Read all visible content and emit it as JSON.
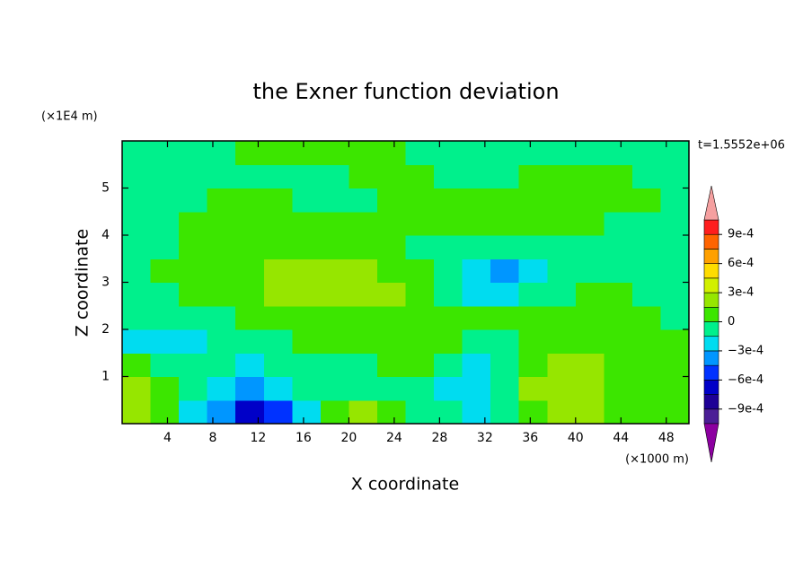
{
  "chart_data": {
    "type": "contour",
    "title": "the Exner function deviation",
    "xlabel": "X coordinate",
    "ylabel": "Z coordinate",
    "x_unit": "(×1000 m)",
    "y_unit": "(×1E4 m)",
    "annotation": "t=1.5552e+06",
    "xlim": [
      0,
      50
    ],
    "xticks": [
      4,
      8,
      12,
      16,
      20,
      24,
      28,
      32,
      36,
      40,
      44,
      48
    ],
    "ylim": [
      0,
      6
    ],
    "yticks": [
      1,
      2,
      3,
      4,
      5
    ],
    "x": [
      1.25,
      3.75,
      6.25,
      8.75,
      11.25,
      13.75,
      16.25,
      18.75,
      21.25,
      23.75,
      26.25,
      28.75,
      31.25,
      33.75,
      36.25,
      38.75,
      41.25,
      43.75,
      46.25,
      48.75
    ],
    "y": [
      0.25,
      0.75,
      1.25,
      1.75,
      2.25,
      2.75,
      3.25,
      3.75,
      4.25,
      4.75,
      5.25,
      5.75
    ],
    "z": [
      [
        0.0002,
        7e-05,
        -0.0002,
        -0.00035,
        -0.0007,
        -0.0005,
        -0.0002,
        7e-05,
        0.0002,
        7e-05,
        -5e-05,
        -5e-05,
        -0.0002,
        -5e-05,
        7e-05,
        0.0002,
        0.0002,
        7e-05,
        7e-05,
        7e-05
      ],
      [
        0.0002,
        7e-05,
        -5e-05,
        -0.0002,
        -0.00035,
        -0.0002,
        -5e-05,
        -5e-05,
        -5e-05,
        -5e-05,
        -5e-05,
        -0.0002,
        -0.0002,
        -5e-05,
        0.0002,
        0.0002,
        0.0002,
        7e-05,
        7e-05,
        7e-05
      ],
      [
        7e-05,
        -5e-05,
        -5e-05,
        -5e-05,
        -0.0002,
        -5e-05,
        -5e-05,
        -5e-05,
        -5e-05,
        7e-05,
        7e-05,
        -5e-05,
        -0.0002,
        -5e-05,
        7e-05,
        0.0002,
        0.0002,
        7e-05,
        7e-05,
        7e-05
      ],
      [
        -0.0002,
        -0.0002,
        -0.0002,
        -5e-05,
        -5e-05,
        -5e-05,
        7e-05,
        7e-05,
        7e-05,
        7e-05,
        7e-05,
        7e-05,
        -5e-05,
        -5e-05,
        7e-05,
        7e-05,
        7e-05,
        7e-05,
        7e-05,
        7e-05
      ],
      [
        -5e-05,
        -5e-05,
        -5e-05,
        -5e-05,
        7e-05,
        7e-05,
        7e-05,
        7e-05,
        7e-05,
        7e-05,
        7e-05,
        7e-05,
        7e-05,
        7e-05,
        7e-05,
        7e-05,
        7e-05,
        7e-05,
        7e-05,
        -5e-05
      ],
      [
        -5e-05,
        -5e-05,
        7e-05,
        7e-05,
        7e-05,
        0.0002,
        0.0002,
        0.0002,
        0.0002,
        0.0002,
        7e-05,
        -5e-05,
        -0.0002,
        -0.0002,
        -5e-05,
        -5e-05,
        7e-05,
        7e-05,
        -5e-05,
        -5e-05
      ],
      [
        -5e-05,
        7e-05,
        7e-05,
        7e-05,
        7e-05,
        0.0002,
        0.0002,
        0.0002,
        0.0002,
        7e-05,
        7e-05,
        -5e-05,
        -0.0002,
        -0.00035,
        -0.0002,
        -5e-05,
        -5e-05,
        -5e-05,
        -5e-05,
        -5e-05
      ],
      [
        -5e-05,
        -5e-05,
        7e-05,
        7e-05,
        7e-05,
        7e-05,
        7e-05,
        7e-05,
        7e-05,
        7e-05,
        -5e-05,
        -5e-05,
        -5e-05,
        -5e-05,
        -5e-05,
        -5e-05,
        -5e-05,
        -5e-05,
        -5e-05,
        -5e-05
      ],
      [
        -5e-05,
        -5e-05,
        7e-05,
        7e-05,
        7e-05,
        7e-05,
        7e-05,
        7e-05,
        7e-05,
        7e-05,
        7e-05,
        7e-05,
        7e-05,
        7e-05,
        7e-05,
        7e-05,
        7e-05,
        -5e-05,
        -5e-05,
        -5e-05
      ],
      [
        -5e-05,
        -5e-05,
        -5e-05,
        7e-05,
        7e-05,
        7e-05,
        -5e-05,
        -5e-05,
        -5e-05,
        7e-05,
        7e-05,
        7e-05,
        7e-05,
        7e-05,
        7e-05,
        7e-05,
        7e-05,
        7e-05,
        7e-05,
        -5e-05
      ],
      [
        -5e-05,
        -5e-05,
        -5e-05,
        -5e-05,
        -5e-05,
        -5e-05,
        -5e-05,
        -5e-05,
        7e-05,
        7e-05,
        7e-05,
        -5e-05,
        -5e-05,
        -5e-05,
        7e-05,
        7e-05,
        7e-05,
        7e-05,
        -5e-05,
        -5e-05
      ],
      [
        -5e-05,
        -5e-05,
        -5e-05,
        -5e-05,
        7e-05,
        7e-05,
        7e-05,
        7e-05,
        7e-05,
        7e-05,
        -5e-05,
        -5e-05,
        -5e-05,
        -5e-05,
        -5e-05,
        -5e-05,
        -5e-05,
        -5e-05,
        -5e-05,
        -5e-05
      ]
    ],
    "levels": [
      -0.00105,
      -0.0009,
      -0.00075,
      -0.0006,
      -0.00045,
      -0.0003,
      -0.00015,
      0,
      0.00015,
      0.0003,
      0.00045,
      0.0006,
      0.00075,
      0.0009,
      0.00105
    ],
    "colors": [
      "#4b1e96",
      "#1e0096",
      "#0000c8",
      "#0032ff",
      "#0096ff",
      "#00dcf0",
      "#00f08c",
      "#3ce600",
      "#96e600",
      "#d2f000",
      "#ffdc00",
      "#ffa000",
      "#ff6400",
      "#ff1e1e"
    ],
    "under_color": "#8c00a0",
    "over_color": "#f5a0a0",
    "cbar_ticks": [
      {
        "value": -0.0009,
        "label": "−9e-4"
      },
      {
        "value": -0.0006,
        "label": "−6e-4"
      },
      {
        "value": -0.0003,
        "label": "−3e-4"
      },
      0,
      {
        "value": 0.0003,
        "label": "3e-4"
      },
      {
        "value": 0.0006,
        "label": "6e-4"
      },
      {
        "value": 0.0009,
        "label": "9e-4"
      }
    ]
  }
}
